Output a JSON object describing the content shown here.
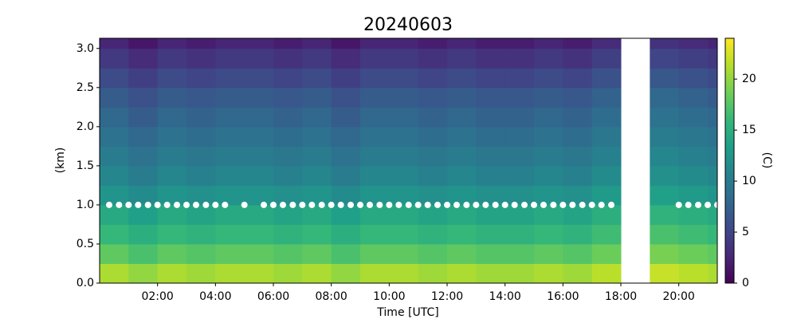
{
  "chart_data": {
    "type": "heatmap",
    "title": "20240603",
    "xlabel": "Time [UTC]",
    "ylabel": "(km)",
    "colorbar_label": "(C)",
    "x": [
      0,
      1,
      2,
      3,
      4,
      5,
      6,
      7,
      8,
      9,
      10,
      11,
      12,
      13,
      14,
      15,
      16,
      17,
      18,
      19,
      20,
      21
    ],
    "y": [
      0,
      0.25,
      0.5,
      0.75,
      1,
      1.25,
      1.5,
      1.75,
      2,
      2.25,
      2.5,
      2.75,
      3
    ],
    "z": [
      [
        21,
        20,
        21,
        20.5,
        21,
        21,
        20.5,
        21,
        20,
        21,
        21,
        20.5,
        21,
        20.5,
        20.5,
        21,
        20.5,
        21.5,
        null,
        22,
        21.5,
        21
      ],
      [
        18,
        17,
        18,
        17.5,
        18,
        18,
        17.5,
        18,
        17,
        18,
        18,
        17.5,
        18,
        17.5,
        17.5,
        18,
        17.5,
        18.5,
        null,
        19,
        18.5,
        18
      ],
      [
        16,
        15,
        16,
        15.5,
        16,
        16,
        15.5,
        16,
        15,
        16,
        16,
        15.5,
        16,
        15.5,
        15.5,
        16,
        15.5,
        16.5,
        null,
        17,
        16.5,
        16
      ],
      [
        14.5,
        13.5,
        14.5,
        14,
        14.5,
        14.5,
        14,
        14.5,
        13.5,
        14.5,
        14.5,
        14,
        14.5,
        14,
        14,
        14.5,
        14,
        15,
        null,
        15.5,
        15,
        14.5
      ],
      [
        12.5,
        11.5,
        12.5,
        12,
        12.5,
        12.5,
        12,
        12.5,
        11.5,
        12.5,
        12.5,
        12,
        12.5,
        12,
        12,
        12.5,
        12,
        13,
        null,
        13.5,
        13,
        12.5
      ],
      [
        11,
        10,
        11,
        10.5,
        11,
        11,
        10.5,
        11,
        10,
        11,
        11,
        10.5,
        11,
        10.5,
        10.5,
        11,
        10.5,
        11.5,
        null,
        12,
        11.5,
        11
      ],
      [
        10,
        9,
        10,
        9.5,
        10,
        10,
        9.5,
        10,
        9,
        10,
        10,
        9.5,
        10,
        9.5,
        9.5,
        10,
        9.5,
        10.5,
        null,
        11,
        10.5,
        10
      ],
      [
        9,
        8,
        9,
        8.5,
        9,
        9,
        8.5,
        9,
        8,
        9,
        9,
        8.5,
        9,
        8.5,
        8.5,
        9,
        8.5,
        9.5,
        null,
        10,
        9.5,
        9
      ],
      [
        8,
        7,
        8,
        7.5,
        8,
        8,
        7.5,
        8,
        7,
        8,
        8,
        7.5,
        8,
        7.5,
        7.5,
        8,
        7.5,
        8.5,
        null,
        9,
        8.5,
        8
      ],
      [
        7,
        6,
        7,
        6.5,
        7,
        7,
        6.5,
        7,
        6,
        7,
        7,
        6.5,
        7,
        6.5,
        6.5,
        7,
        6.5,
        7.5,
        null,
        8,
        7.5,
        7
      ],
      [
        5.5,
        4.5,
        5.5,
        5,
        5.5,
        5.5,
        5,
        5.5,
        4.5,
        5.5,
        5.5,
        5,
        5.5,
        5,
        5,
        5.5,
        5,
        6,
        null,
        6.5,
        6,
        5.5
      ],
      [
        4,
        3,
        4,
        3.5,
        4,
        4,
        3.5,
        4,
        3,
        4,
        4,
        3.5,
        4,
        3.5,
        3.5,
        4,
        3.5,
        4.5,
        null,
        5,
        4.5,
        4
      ],
      [
        2.5,
        1.5,
        2.5,
        2,
        2.5,
        2.5,
        2,
        2.5,
        1.5,
        2.5,
        2.5,
        2,
        2.5,
        2,
        2,
        2.5,
        2,
        3,
        null,
        3.5,
        3,
        2.5
      ]
    ],
    "markers": {
      "color": "#ffffff",
      "x": [
        0.33,
        0.67,
        1,
        1.33,
        1.67,
        2,
        2.33,
        2.67,
        3,
        3.33,
        3.67,
        4,
        4.33,
        5,
        5.67,
        6,
        6.33,
        6.67,
        7,
        7.33,
        7.67,
        8,
        8.33,
        8.67,
        9,
        9.33,
        9.67,
        10,
        10.33,
        10.67,
        11,
        11.33,
        11.67,
        12,
        12.33,
        12.67,
        13,
        13.33,
        13.67,
        14,
        14.33,
        14.67,
        15,
        15.33,
        15.67,
        16,
        16.33,
        16.67,
        17,
        17.33,
        17.67,
        20,
        20.33,
        20.67,
        21,
        21.33
      ],
      "y": [
        1,
        1,
        1,
        1,
        1,
        1,
        1,
        1,
        1,
        1,
        1,
        1,
        1,
        1,
        1,
        1,
        1,
        1,
        1,
        1,
        1,
        1,
        1,
        1,
        1,
        1,
        1,
        1,
        1,
        1,
        1,
        1,
        1,
        1,
        1,
        1,
        1,
        1,
        1,
        1,
        1,
        1,
        1,
        1,
        1,
        1,
        1,
        1,
        1,
        1,
        1,
        1,
        1,
        1,
        1,
        1
      ]
    },
    "xlim": [
      0,
      21.33
    ],
    "ylim": [
      0,
      3.13
    ],
    "clim": [
      0,
      24
    ],
    "xticks": [
      {
        "value": 2,
        "label": "02:00"
      },
      {
        "value": 4,
        "label": "04:00"
      },
      {
        "value": 6,
        "label": "06:00"
      },
      {
        "value": 8,
        "label": "08:00"
      },
      {
        "value": 10,
        "label": "10:00"
      },
      {
        "value": 12,
        "label": "12:00"
      },
      {
        "value": 14,
        "label": "14:00"
      },
      {
        "value": 16,
        "label": "16:00"
      },
      {
        "value": 18,
        "label": "18:00"
      },
      {
        "value": 20,
        "label": "20:00"
      }
    ],
    "yticks": [
      {
        "value": 0,
        "label": "0.0"
      },
      0.5,
      {
        "value": 1,
        "label": "1.0"
      },
      1.5,
      {
        "value": 2,
        "label": "2.0"
      },
      2.5,
      {
        "value": 3,
        "label": "3.0"
      }
    ],
    "cticks": [
      0,
      5,
      10,
      15,
      20
    ],
    "colormap": [
      "#440154",
      "#482878",
      "#3e4989",
      "#31688e",
      "#26828e",
      "#1f9e89",
      "#35b779",
      "#6ece58",
      "#b5de2b",
      "#fde725"
    ]
  }
}
